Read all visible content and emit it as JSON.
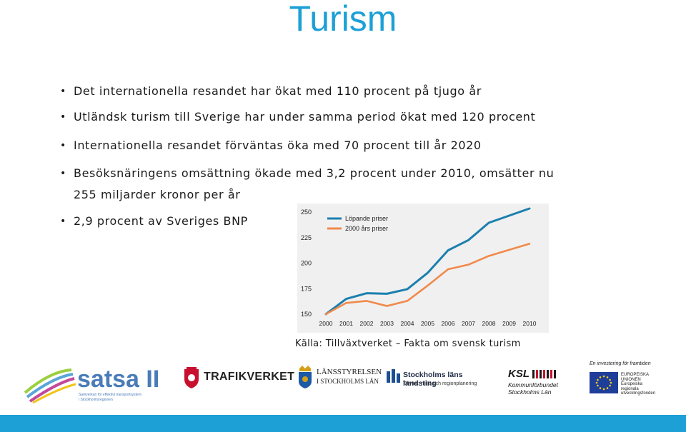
{
  "title": "Turism",
  "bullets": [
    {
      "text": "Det internationella resandet har ökat med 110 procent på tjugo år"
    },
    {
      "text": "Utländsk turism till Sverige har under samma period ökat med 120 procent"
    },
    {
      "text": "Internationella resandet förväntas öka med 70 procent till år 2020"
    },
    {
      "text": "Besöksnäringens omsättning ökade med 3,2 procent under 2010, omsätter nu"
    },
    {
      "text": "255 miljarder kronor per år"
    },
    {
      "text": "2,9 procent av Sveriges BNP"
    }
  ],
  "chart_data": {
    "type": "line",
    "x": [
      "2000",
      "2001",
      "2002",
      "2003",
      "2004",
      "2005",
      "2006",
      "2007",
      "2008",
      "2009",
      "2010"
    ],
    "yticks": [
      "250",
      "225",
      "200",
      "175",
      "150"
    ],
    "ylim": [
      150,
      250
    ],
    "series": [
      {
        "name": "Löpande priser",
        "color": "#1b7fae",
        "values": [
          150,
          165,
          170.5,
          170,
          174.5,
          190.5,
          212.5,
          222.5,
          239.5,
          246.5,
          253.5
        ]
      },
      {
        "name": "2000 års priser",
        "color": "#f08a4b",
        "values": [
          150,
          161,
          163,
          158,
          163,
          178,
          194,
          198.5,
          207,
          213,
          219
        ]
      }
    ],
    "grid": false,
    "legend": "top-left"
  },
  "source": "Källa: Tillväxtverket – Fakta om svensk turism",
  "logos": {
    "satsa": {
      "name": "satsa II",
      "tagline_1": "Samverkan för effektivt transportsystem",
      "tagline_2": "i Stockholmsregionen"
    },
    "trafikverket": {
      "name": "TRAFIKVERKET"
    },
    "lansstyrelsen": {
      "line1": "LÄNSSTYRELSEN",
      "line2": "I STOCKHOLMS LÄN"
    },
    "landsting": {
      "line1": "Stockholms läns landsting",
      "line2": "Tillväxt, miljö och regionplanering"
    },
    "ksl": {
      "abbr": "KSL",
      "line1": "Kommunförbundet",
      "line2": "Stockholms Län"
    },
    "eu": {
      "top": "En investering för framtiden",
      "line1": "EUROPEISKA",
      "line2": "UNIONEN",
      "line3": "Europeiska",
      "line4": "regionala",
      "line5": "utvecklingsfonden"
    }
  },
  "colors": {
    "accent": "#1ca0d6",
    "series1": "#1b7fae",
    "series2": "#f08a4b"
  }
}
